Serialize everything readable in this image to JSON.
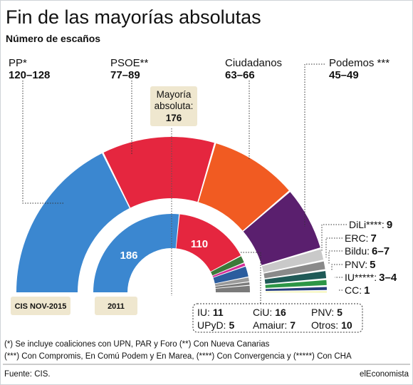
{
  "title": "Fin de las mayorías absolutas",
  "subtitle": "Número de escaños",
  "majority": {
    "label_line1": "Mayoría",
    "label_line2": "absoluta:",
    "value": "176"
  },
  "outer_badge": "CIS NOV-2015",
  "inner_badge": "2011",
  "colors": {
    "PP": "#3b87d0",
    "PSOE": "#e5263f",
    "Ciudadanos": "#f15b22",
    "Podemos": "#5a1f6e",
    "DiLi": "#c9c9c9",
    "ERC": "#8a8a8a",
    "Bildu": "#1f5a57",
    "PNV": "#2d9646",
    "IU": "#253d7a",
    "CC": "#dfe02a",
    "majority_box": "#efe7cf",
    "badge": "#efe7cf",
    "Otros": "#7a7a7a",
    "Amaiur": "#9a9a9a",
    "UPyD": "#d42e97",
    "CiU": "#2b5d9e",
    "IU2011": "#3c7a3a"
  },
  "chart_data": [
    {
      "type": "semicircle-donut",
      "name": "CIS NOV-2015",
      "total_seats": 350,
      "parties": [
        {
          "name": "PP*",
          "range": "120–128",
          "min": 120,
          "max": 128,
          "value": 124
        },
        {
          "name": "PSOE**",
          "range": "77–89",
          "min": 77,
          "max": 89,
          "value": 83
        },
        {
          "name": "Ciudadanos",
          "range": "63–66",
          "min": 63,
          "max": 66,
          "value": 64.5
        },
        {
          "name": "Podemos ***",
          "range": "45–49",
          "min": 45,
          "max": 49,
          "value": 47
        },
        {
          "name": "DiLi****",
          "range": "9",
          "value": 9
        },
        {
          "name": "ERC",
          "range": "7",
          "value": 7
        },
        {
          "name": "Bildu",
          "range": "6–7",
          "min": 6,
          "max": 7,
          "value": 6.5
        },
        {
          "name": "PNV",
          "range": "5",
          "value": 5
        },
        {
          "name": "IU*****",
          "range": "3–4",
          "min": 3,
          "max": 4,
          "value": 3.5
        },
        {
          "name": "CC",
          "range": "1",
          "value": 1
        }
      ]
    },
    {
      "type": "semicircle-donut",
      "name": "2011",
      "total_seats": 350,
      "parties": [
        {
          "name": "PP",
          "value": 186
        },
        {
          "name": "PSOE",
          "value": 110
        },
        {
          "name": "IU",
          "value": 11
        },
        {
          "name": "UPyD",
          "value": 5
        },
        {
          "name": "CiU",
          "value": 16
        },
        {
          "name": "Amaiur",
          "value": 7
        },
        {
          "name": "PNV",
          "value": 5
        },
        {
          "name": "Otros",
          "value": 10
        }
      ]
    }
  ],
  "labels": {
    "pp_name": "PP*",
    "pp_range": "120–128",
    "psoe_name": "PSOE**",
    "psoe_range": "77–89",
    "cs_name": "Ciudadanos",
    "cs_range": "63–66",
    "pod_name": "Podemos ***",
    "pod_range": "45–49",
    "dili_name": "DiLi****:",
    "dili_val": "9",
    "erc_name": "ERC:",
    "erc_val": "7",
    "bildu_name": "Bildu:",
    "bildu_val": "6–7",
    "pnv_name": "PNV:",
    "pnv_val": "5",
    "iu_name": "IU*****:",
    "iu_val": "3–4",
    "cc_name": "CC:",
    "cc_val": "1",
    "in_pp": "186",
    "in_psoe": "110"
  },
  "legend_2011": [
    {
      "name": "IU:",
      "value": "11"
    },
    {
      "name": "CiU:",
      "value": "16"
    },
    {
      "name": "PNV:",
      "value": "5"
    },
    {
      "name": "UPyD:",
      "value": "5"
    },
    {
      "name": "Amaiur:",
      "value": "7"
    },
    {
      "name": "Otros:",
      "value": "10"
    }
  ],
  "notes": [
    "(*) Se incluye coaliciones con UPN, PAR y Foro (**) Con Nueva Canarias",
    "(***) Con Compromis, En Comú Podem y En Marea, (****) Con Convergencia y (*****) Con CHA"
  ],
  "footer": {
    "source": "Fuente: CIS.",
    "brand": "elEconomista"
  }
}
